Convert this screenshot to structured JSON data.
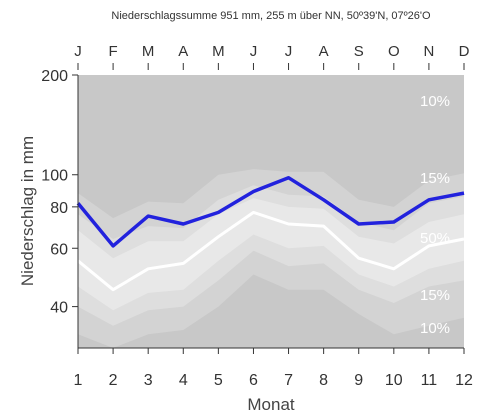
{
  "chart_data": {
    "type": "line",
    "title": "Niederschlagssumme 951 mm, 255 m über NN, 50º39'N, 07º26'O",
    "xlabel": "Monat",
    "ylabel": "Niederschlag in mm",
    "y_scale": "log",
    "ylim": [
      30,
      200
    ],
    "y_ticks": [
      40,
      60,
      80,
      100,
      200
    ],
    "y_tick_labels": [
      "40",
      "60",
      "80",
      "100",
      "200"
    ],
    "x": [
      1,
      2,
      3,
      4,
      5,
      6,
      7,
      8,
      9,
      10,
      11,
      12
    ],
    "x_tick_labels": [
      "1",
      "2",
      "3",
      "4",
      "5",
      "6",
      "7",
      "8",
      "9",
      "10",
      "11",
      "12"
    ],
    "top_labels": [
      "J",
      "F",
      "M",
      "A",
      "M",
      "J",
      "J",
      "A",
      "S",
      "O",
      "N",
      "D"
    ],
    "grid": false,
    "colors": {
      "mean_line": "#2222dd",
      "median_line": "#ffffff",
      "background": "#c8c8c8",
      "band_outer": "#d3d3d3",
      "band_middle": "#dedede",
      "band_inner": "#e8e8e8"
    },
    "series": [
      {
        "values": [
          82,
          61,
          75,
          71,
          77,
          89,
          98,
          84,
          71,
          72,
          84,
          88
        ]
      },
      {
        "values": [
          55,
          45,
          52,
          54,
          65,
          77,
          71,
          70,
          56,
          52,
          61,
          64
        ]
      }
    ],
    "bands": [
      {
        "lower": [
          33,
          30,
          33,
          34,
          40,
          50,
          45,
          45,
          38,
          33,
          35,
          37
        ],
        "upper": [
          88,
          74,
          83,
          82,
          100,
          104,
          102,
          102,
          84,
          80,
          96,
          101
        ]
      },
      {
        "lower": [
          40,
          35,
          39,
          40,
          48,
          59,
          53,
          54,
          45,
          41,
          46,
          48
        ],
        "upper": [
          76,
          64,
          70,
          69,
          84,
          93,
          87,
          86,
          72,
          68,
          82,
          86
        ]
      },
      {
        "lower": [
          46,
          39,
          44,
          45,
          55,
          66,
          60,
          61,
          50,
          46,
          52,
          55
        ],
        "upper": [
          68,
          56,
          63,
          63,
          76,
          85,
          80,
          79,
          65,
          62,
          72,
          76
        ]
      }
    ],
    "annotations": [
      "10%",
      "15%",
      "50%",
      "15%",
      "10%"
    ]
  }
}
